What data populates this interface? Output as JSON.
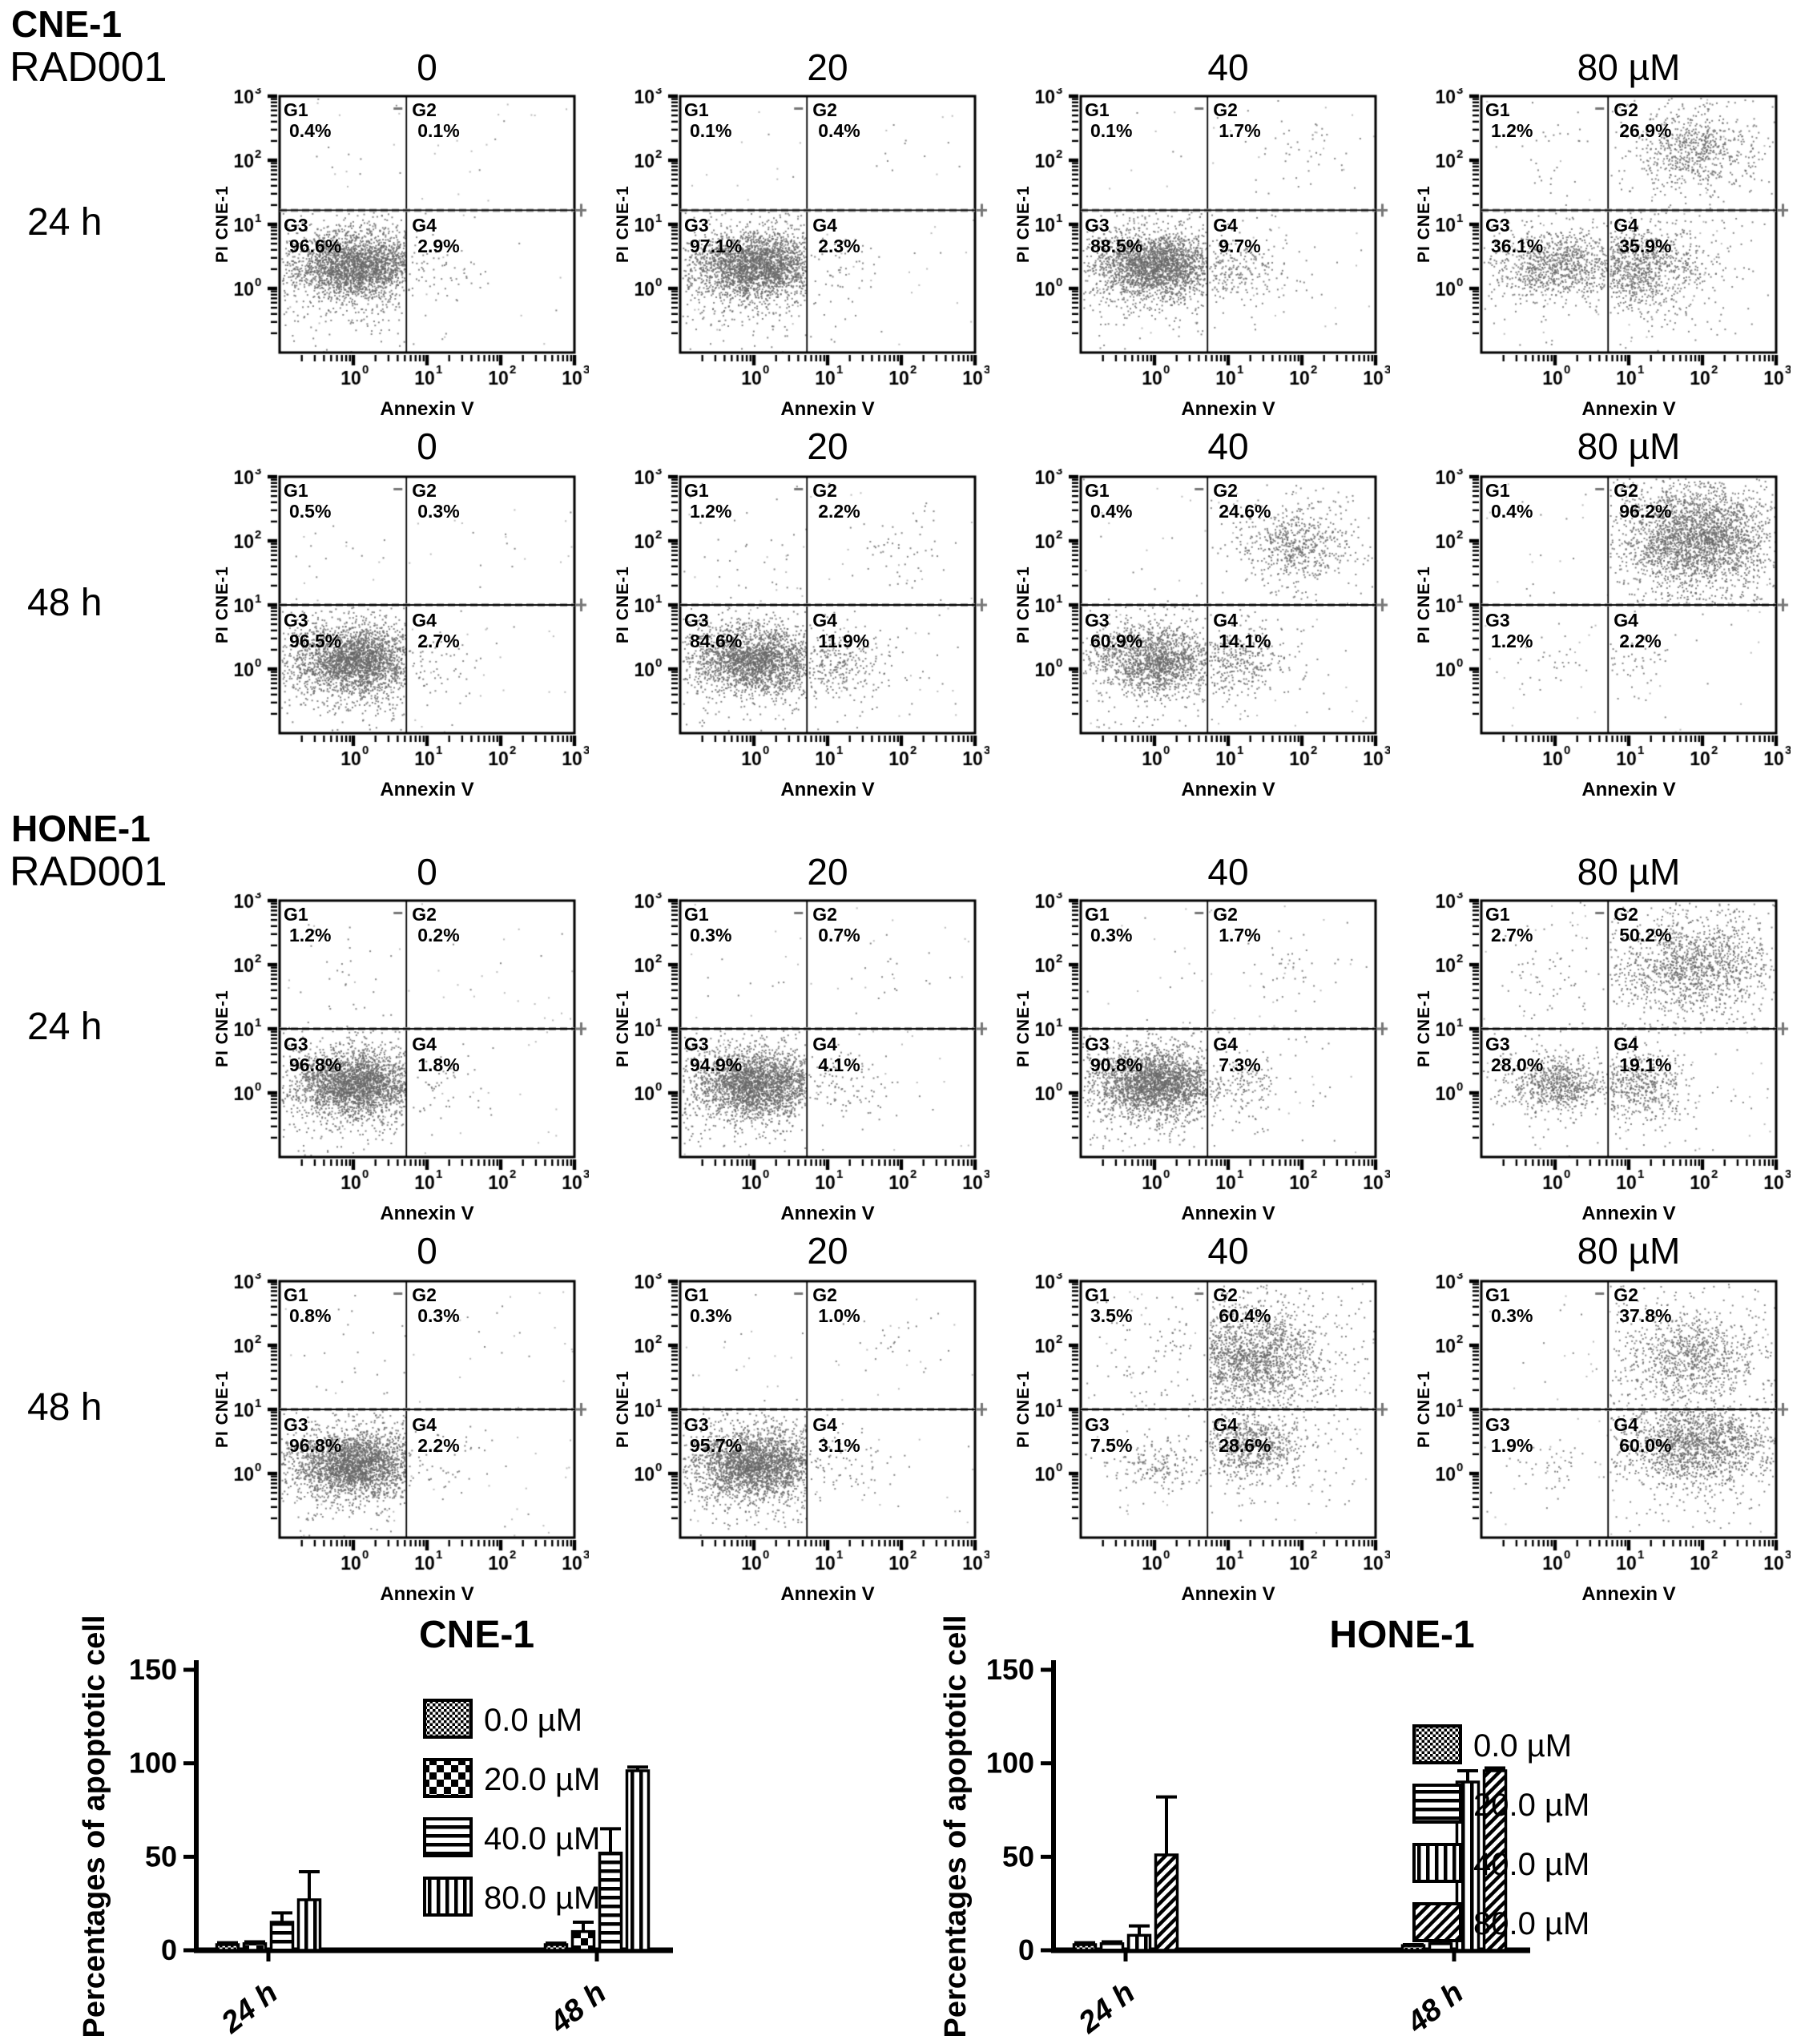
{
  "page": {
    "background": "#ffffff",
    "dot_color": "#6a6a6a"
  },
  "scatter_axes": {
    "x_label": "Annexin V",
    "y_label": "PI CNE-1",
    "tick_base": "10",
    "tick_exponents": [
      0,
      1,
      2,
      3
    ]
  },
  "gate_markers": {
    "plus": "+",
    "minus": "-"
  },
  "sections": [
    {
      "cell_line": "CNE-1",
      "treatment": "RAD001",
      "rows": [
        {
          "time": "24 h",
          "concentrations": [
            "0",
            "20",
            "40",
            "80 µM"
          ],
          "panels": [
            {
              "quadrants": {
                "G1": "0.4%",
                "G2": "0.1%",
                "G3": "96.6%",
                "G4": "2.9%"
              }
            },
            {
              "quadrants": {
                "G1": "0.1%",
                "G2": "0.4%",
                "G3": "97.1%",
                "G4": "2.3%"
              }
            },
            {
              "quadrants": {
                "G1": "0.1%",
                "G2": "1.7%",
                "G3": "88.5%",
                "G4": "9.7%"
              }
            },
            {
              "quadrants": {
                "G1": "1.2%",
                "G2": "26.9%",
                "G3": "36.1%",
                "G4": "35.9%"
              }
            }
          ]
        },
        {
          "time": "48 h",
          "concentrations": [
            "0",
            "20",
            "40",
            "80 µM"
          ],
          "panels": [
            {
              "quadrants": {
                "G1": "0.5%",
                "G2": "0.3%",
                "G3": "96.5%",
                "G4": "2.7%"
              }
            },
            {
              "quadrants": {
                "G1": "1.2%",
                "G2": "2.2%",
                "G3": "84.6%",
                "G4": "11.9%"
              }
            },
            {
              "quadrants": {
                "G1": "0.4%",
                "G2": "24.6%",
                "G3": "60.9%",
                "G4": "14.1%"
              }
            },
            {
              "quadrants": {
                "G1": "0.4%",
                "G2": "96.2%",
                "G3": "1.2%",
                "G4": "2.2%"
              },
              "hints": {
                "G2": [
                  1.95,
                  2.05
                ]
              }
            }
          ]
        }
      ]
    },
    {
      "cell_line": "HONE-1",
      "treatment": "RAD001",
      "rows": [
        {
          "time": "24 h",
          "concentrations": [
            "0",
            "20",
            "40",
            "80 µM"
          ],
          "panels": [
            {
              "quadrants": {
                "G1": "1.2%",
                "G2": "0.2%",
                "G3": "96.8%",
                "G4": "1.8%"
              }
            },
            {
              "quadrants": {
                "G1": "0.3%",
                "G2": "0.7%",
                "G3": "94.9%",
                "G4": "4.1%"
              }
            },
            {
              "quadrants": {
                "G1": "0.3%",
                "G2": "1.7%",
                "G3": "90.8%",
                "G4": "7.3%"
              }
            },
            {
              "quadrants": {
                "G1": "2.7%",
                "G2": "50.2%",
                "G3": "28.0%",
                "G4": "19.1%"
              },
              "hints": {
                "G2": [
                  1.85,
                  2.0
                ]
              }
            }
          ]
        },
        {
          "time": "48 h",
          "concentrations": [
            "0",
            "20",
            "40",
            "80 µM"
          ],
          "panels": [
            {
              "quadrants": {
                "G1": "0.8%",
                "G2": "0.3%",
                "G3": "96.8%",
                "G4": "2.2%"
              }
            },
            {
              "quadrants": {
                "G1": "0.3%",
                "G2": "1.0%",
                "G3": "95.7%",
                "G4": "3.1%"
              }
            },
            {
              "quadrants": {
                "G1": "3.5%",
                "G2": "60.4%",
                "G3": "7.5%",
                "G4": "28.6%"
              },
              "hints": {
                "G2": [
                  1.25,
                  1.8
                ],
                "G4": [
                  1.3,
                  0.45
                ]
              }
            },
            {
              "quadrants": {
                "G1": "0.3%",
                "G2": "37.8%",
                "G3": "1.9%",
                "G4": "60.0%"
              },
              "hints": {
                "G2": [
                  1.85,
                  1.8
                ],
                "G4": [
                  1.9,
                  0.5
                ]
              }
            }
          ]
        }
      ]
    }
  ],
  "chart_data": [
    {
      "type": "bar",
      "title": "CNE-1",
      "ylabel": "Percentages of apoptotic cells",
      "categories": [
        "24 h",
        "48 h"
      ],
      "ylim": [
        0,
        150
      ],
      "yticks": [
        0,
        50,
        100,
        150
      ],
      "grid": false,
      "legend_position": "right",
      "series": [
        {
          "name": "0.0 µM",
          "pattern": "fine-check",
          "values": [
            3,
            3
          ],
          "errors": [
            1,
            0.8
          ]
        },
        {
          "name": "20.0 µM",
          "pattern": "checker",
          "values": [
            3.5,
            10
          ],
          "errors": [
            1,
            5
          ]
        },
        {
          "name": "40.0 µM",
          "pattern": "h-lines",
          "values": [
            15,
            52
          ],
          "errors": [
            5,
            13
          ]
        },
        {
          "name": "80.0 µM",
          "pattern": "v-lines",
          "values": [
            27,
            96
          ],
          "errors": [
            15,
            2
          ]
        }
      ]
    },
    {
      "type": "bar",
      "title": "HONE-1",
      "ylabel": "Percentages of apoptotic cells",
      "categories": [
        "24 h",
        "48 h"
      ],
      "ylim": [
        0,
        150
      ],
      "yticks": [
        0,
        50,
        100,
        150
      ],
      "grid": false,
      "legend_position": "right",
      "series": [
        {
          "name": "0.0 µM",
          "pattern": "fine-check",
          "values": [
            3,
            2.5
          ],
          "errors": [
            1,
            0.5
          ]
        },
        {
          "name": "20.0 µM",
          "pattern": "h-lines",
          "values": [
            3.5,
            3.5
          ],
          "errors": [
            1,
            1.5
          ]
        },
        {
          "name": "40.0 µM",
          "pattern": "v-lines",
          "values": [
            8,
            90
          ],
          "errors": [
            5,
            6
          ]
        },
        {
          "name": "80.0 µM",
          "pattern": "diag-lines",
          "values": [
            51,
            96
          ],
          "errors": [
            31,
            1.5
          ]
        }
      ]
    }
  ]
}
